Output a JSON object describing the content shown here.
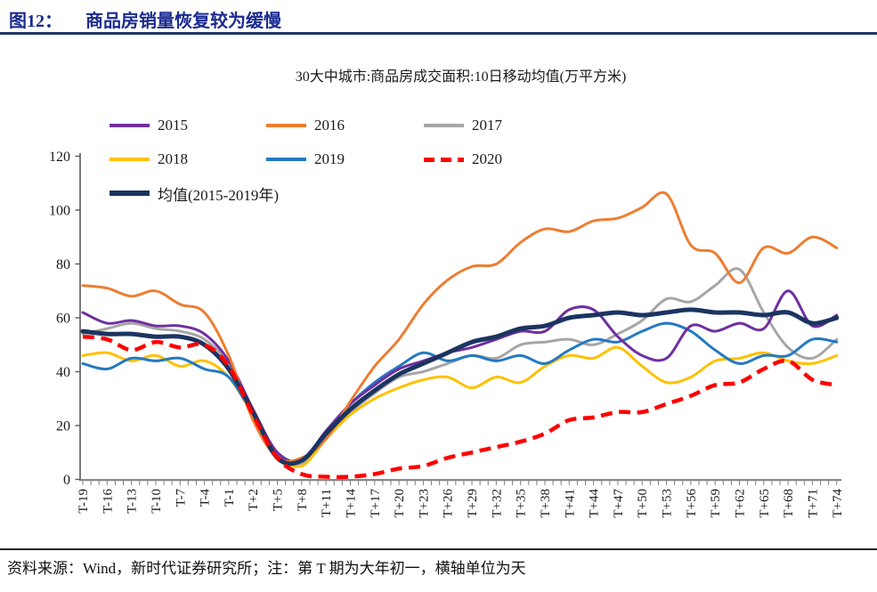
{
  "figure": {
    "label": "图12：",
    "title": "商品房销量恢复较为缓慢"
  },
  "chart_title": "30大中城市:商品房成交面积:10日移动均值(万平方米)",
  "footer": {
    "source_note": "资料来源：Wind，新时代证券研究所；注：第 T 期为大年初一，横轴单位为天"
  },
  "colors": {
    "heading": "#1b2b8f",
    "title_rule": "#1f3864",
    "axis_line": "#808080",
    "axis_text": "#1a1a1a"
  },
  "chart_data": {
    "type": "line",
    "title": "30大中城市:商品房成交面积:10日移动均值(万平方米)",
    "xlabel": "第T期为大年初一，横轴单位为天",
    "ylabel": "万平方米",
    "ylim": [
      0,
      120
    ],
    "yticks": [
      0,
      20,
      40,
      60,
      80,
      100,
      120
    ],
    "grid": false,
    "legend_position": "top-left",
    "x_days": [
      -19,
      -16,
      -13,
      -10,
      -7,
      -4,
      -1,
      2,
      5,
      8,
      11,
      14,
      17,
      20,
      23,
      26,
      29,
      32,
      35,
      38,
      41,
      44,
      47,
      50,
      53,
      56,
      59,
      62,
      65,
      68,
      71,
      74
    ],
    "categories": [
      "T-19",
      "T-16",
      "T-13",
      "T-10",
      "T-7",
      "T-4",
      "T-1",
      "T+2",
      "T+5",
      "T+8",
      "T+11",
      "T+14",
      "T+17",
      "T+20",
      "T+23",
      "T+26",
      "T+29",
      "T+32",
      "T+35",
      "T+38",
      "T+41",
      "T+44",
      "T+47",
      "T+50",
      "T+53",
      "T+56",
      "T+59",
      "T+62",
      "T+65",
      "T+68",
      "T+71",
      "T+74"
    ],
    "series": [
      {
        "name": "2015",
        "color": "#7030A0",
        "width": 3,
        "dash": null,
        "values": [
          62,
          58,
          59,
          57,
          57,
          54,
          44,
          26,
          10,
          7,
          18,
          28,
          35,
          41,
          44,
          47,
          49,
          52,
          55,
          55,
          63,
          63,
          53,
          46,
          45,
          57,
          55,
          58,
          56,
          70,
          57,
          61
        ]
      },
      {
        "name": "2016",
        "color": "#ED7D31",
        "width": 3,
        "dash": null,
        "values": [
          72,
          71,
          68,
          70,
          65,
          62,
          46,
          22,
          8,
          8,
          15,
          29,
          42,
          52,
          65,
          74,
          79,
          80,
          88,
          93,
          92,
          96,
          97,
          101,
          106,
          87,
          84,
          73,
          86,
          84,
          90,
          86
        ]
      },
      {
        "name": "2017",
        "color": "#A6A6A6",
        "width": 3,
        "dash": null,
        "values": [
          54,
          56,
          58,
          56,
          55,
          52,
          43,
          26,
          9,
          6,
          16,
          25,
          32,
          38,
          40,
          43,
          46,
          45,
          50,
          51,
          52,
          50,
          54,
          59,
          67,
          66,
          72,
          78,
          62,
          49,
          45,
          52
        ]
      },
      {
        "name": "2018",
        "color": "#FFC000",
        "width": 3,
        "dash": null,
        "values": [
          46,
          47,
          44,
          46,
          42,
          44,
          38,
          24,
          9,
          5,
          15,
          24,
          30,
          34,
          37,
          38,
          34,
          38,
          36,
          42,
          46,
          45,
          49,
          42,
          36,
          38,
          44,
          45,
          47,
          44,
          43,
          46
        ]
      },
      {
        "name": "2019",
        "color": "#2479C2",
        "width": 3,
        "dash": null,
        "values": [
          43,
          41,
          45,
          44,
          45,
          41,
          38,
          24,
          10,
          7,
          18,
          28,
          36,
          42,
          47,
          44,
          46,
          44,
          46,
          43,
          48,
          52,
          51,
          55,
          58,
          55,
          48,
          43,
          46,
          46,
          52,
          51
        ]
      },
      {
        "name": "2020",
        "color": "#FE0000",
        "width": 4.5,
        "dash": "13 7.5",
        "values": [
          53,
          52,
          48,
          51,
          49,
          50,
          42,
          24,
          8,
          2,
          1,
          1,
          2,
          4,
          5,
          8,
          10,
          12,
          14,
          17,
          22,
          23,
          25,
          25,
          28,
          31,
          35,
          36,
          41,
          44,
          37,
          35
        ]
      },
      {
        "name": "均值(2015-2019年)",
        "color": "#1B3461",
        "width": 5,
        "dash": null,
        "values": [
          55,
          54,
          54,
          53,
          53,
          50,
          41,
          25,
          8,
          7,
          17,
          26,
          33,
          39,
          43,
          47,
          51,
          53,
          56,
          57,
          60,
          61,
          62,
          61,
          62,
          63,
          62,
          62,
          61,
          62,
          58,
          60
        ]
      }
    ]
  },
  "legend_rows": [
    [
      "2015",
      "2016",
      "2017"
    ],
    [
      "2018",
      "2019",
      "2020"
    ],
    [
      "均值(2015-2019年)"
    ]
  ]
}
